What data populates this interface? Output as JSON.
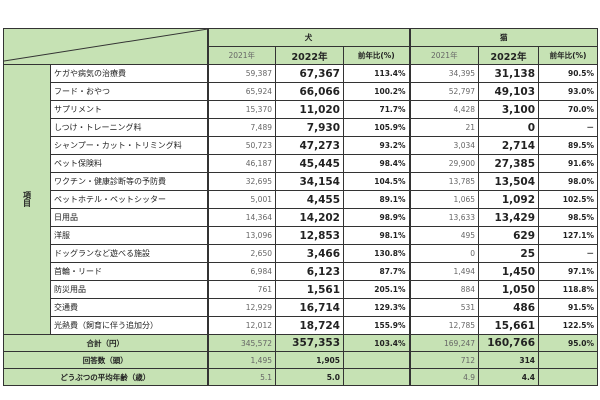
{
  "header": {
    "dog": "犬",
    "cat": "猫",
    "col_2021": "2021年",
    "col_2022": "2022年",
    "col_ratio": "前年比(%)",
    "group_label": "項目"
  },
  "rows": [
    {
      "item": "ケガや病気の治療費",
      "d21": "59,387",
      "d22": "67,367",
      "dr": "113.4%",
      "c21": "34,395",
      "c22": "31,138",
      "cr": "90.5%"
    },
    {
      "item": "フード・おやつ",
      "d21": "65,924",
      "d22": "66,066",
      "dr": "100.2%",
      "c21": "52,797",
      "c22": "49,103",
      "cr": "93.0%"
    },
    {
      "item": "サプリメント",
      "d21": "15,370",
      "d22": "11,020",
      "dr": "71.7%",
      "c21": "4,428",
      "c22": "3,100",
      "cr": "70.0%"
    },
    {
      "item": "しつけ・トレーニング料",
      "d21": "7,489",
      "d22": "7,930",
      "dr": "105.9%",
      "c21": "21",
      "c22": "0",
      "cr": "－"
    },
    {
      "item": "シャンプー・カット・トリミング料",
      "d21": "50,723",
      "d22": "47,273",
      "dr": "93.2%",
      "c21": "3,034",
      "c22": "2,714",
      "cr": "89.5%"
    },
    {
      "item": "ペット保険料",
      "d21": "46,187",
      "d22": "45,445",
      "dr": "98.4%",
      "c21": "29,900",
      "c22": "27,385",
      "cr": "91.6%"
    },
    {
      "item": "ワクチン・健康診断等の予防費",
      "d21": "32,695",
      "d22": "34,154",
      "dr": "104.5%",
      "c21": "13,785",
      "c22": "13,504",
      "cr": "98.0%"
    },
    {
      "item": "ペットホテル・ペットシッター",
      "d21": "5,001",
      "d22": "4,455",
      "dr": "89.1%",
      "c21": "1,065",
      "c22": "1,092",
      "cr": "102.5%"
    },
    {
      "item": "日用品",
      "d21": "14,364",
      "d22": "14,202",
      "dr": "98.9%",
      "c21": "13,633",
      "c22": "13,429",
      "cr": "98.5%"
    },
    {
      "item": "洋服",
      "d21": "13,096",
      "d22": "12,853",
      "dr": "98.1%",
      "c21": "495",
      "c22": "629",
      "cr": "127.1%"
    },
    {
      "item": "ドッグランなど遊べる施設",
      "d21": "2,650",
      "d22": "3,466",
      "dr": "130.8%",
      "c21": "0",
      "c22": "25",
      "cr": "－"
    },
    {
      "item": "首輪・リード",
      "d21": "6,984",
      "d22": "6,123",
      "dr": "87.7%",
      "c21": "1,494",
      "c22": "1,450",
      "cr": "97.1%"
    },
    {
      "item": "防災用品",
      "d21": "761",
      "d22": "1,561",
      "dr": "205.1%",
      "c21": "884",
      "c22": "1,050",
      "cr": "118.8%"
    },
    {
      "item": "交通費",
      "d21": "12,929",
      "d22": "16,714",
      "dr": "129.3%",
      "c21": "531",
      "c22": "486",
      "cr": "91.5%"
    },
    {
      "item": "光熱費（飼育に伴う追加分）",
      "d21": "12,012",
      "d22": "18,724",
      "dr": "155.9%",
      "c21": "12,785",
      "c22": "15,661",
      "cr": "122.5%"
    }
  ],
  "total": {
    "label": "合計（円）",
    "d21": "345,572",
    "d22": "357,353",
    "dr": "103.4%",
    "c21": "169,247",
    "c22": "160,766",
    "cr": "95.0%"
  },
  "responses": {
    "label": "回答数（頭）",
    "d21": "1,495",
    "d22": "1,905",
    "c21": "712",
    "c22": "314"
  },
  "age": {
    "label": "どうぶつの平均年齢（歳）",
    "d21": "5.1",
    "d22": "5.0",
    "c21": "4.9",
    "c22": "4.4"
  }
}
